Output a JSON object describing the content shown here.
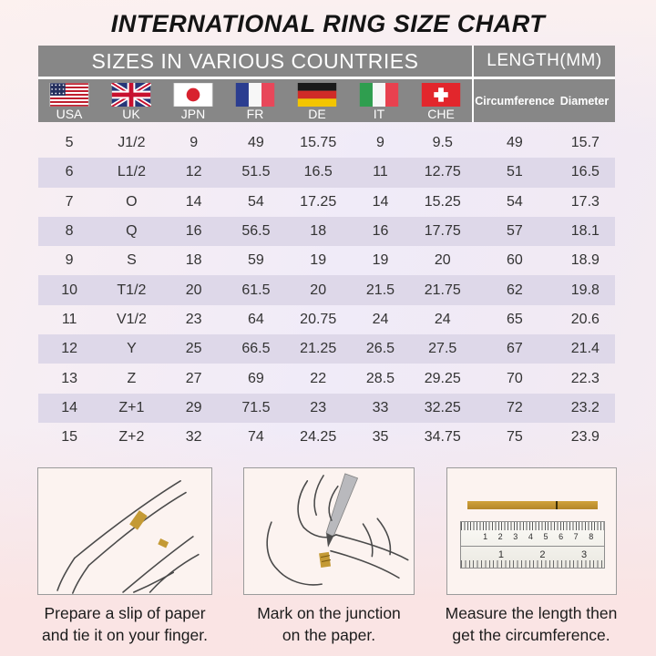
{
  "title": "INTERNATIONAL RING SIZE CHART",
  "header": {
    "countries_group": "SIZES IN VARIOUS COUNTRIES",
    "length_group": "LENGTH(MM)",
    "length_columns": [
      "Circumference",
      "Diameter"
    ]
  },
  "countries": [
    {
      "code": "USA",
      "flag": "usa-flag"
    },
    {
      "code": "UK",
      "flag": "uk-flag"
    },
    {
      "code": "JPN",
      "flag": "japan-flag"
    },
    {
      "code": "FR",
      "flag": "france-flag"
    },
    {
      "code": "DE",
      "flag": "germany-flag"
    },
    {
      "code": "IT",
      "flag": "italy-flag"
    },
    {
      "code": "CHE",
      "flag": "switzerland-flag"
    }
  ],
  "chart_data": {
    "type": "table",
    "title": "INTERNATIONAL RING SIZE CHART",
    "columns": [
      "USA",
      "UK",
      "JPN",
      "FR",
      "DE",
      "IT",
      "CHE",
      "Circumference",
      "Diameter"
    ],
    "rows": [
      [
        "5",
        "J1/2",
        "9",
        "49",
        "15.75",
        "9",
        "9.5",
        "49",
        "15.7"
      ],
      [
        "6",
        "L1/2",
        "12",
        "51.5",
        "16.5",
        "11",
        "12.75",
        "51",
        "16.5"
      ],
      [
        "7",
        "O",
        "14",
        "54",
        "17.25",
        "14",
        "15.25",
        "54",
        "17.3"
      ],
      [
        "8",
        "Q",
        "16",
        "56.5",
        "18",
        "16",
        "17.75",
        "57",
        "18.1"
      ],
      [
        "9",
        "S",
        "18",
        "59",
        "19",
        "19",
        "20",
        "60",
        "18.9"
      ],
      [
        "10",
        "T1/2",
        "20",
        "61.5",
        "20",
        "21.5",
        "21.75",
        "62",
        "19.8"
      ],
      [
        "11",
        "V1/2",
        "23",
        "64",
        "20.75",
        "24",
        "24",
        "65",
        "20.6"
      ],
      [
        "12",
        "Y",
        "25",
        "66.5",
        "21.25",
        "26.5",
        "27.5",
        "67",
        "21.4"
      ],
      [
        "13",
        "Z",
        "27",
        "69",
        "22",
        "28.5",
        "29.25",
        "70",
        "22.3"
      ],
      [
        "14",
        "Z+1",
        "29",
        "71.5",
        "23",
        "33",
        "32.25",
        "72",
        "23.2"
      ],
      [
        "15",
        "Z+2",
        "32",
        "74",
        "24.25",
        "35",
        "34.75",
        "75",
        "23.9"
      ]
    ]
  },
  "instructions": [
    {
      "illustration": "hand-with-paper-slip",
      "lines": [
        "Prepare a slip of paper",
        "and tie it on your finger."
      ]
    },
    {
      "illustration": "marking-pen-on-finger",
      "lines": [
        "Mark on the junction",
        "on the paper."
      ]
    },
    {
      "illustration": "ruler-measuring-strip",
      "lines": [
        "Measure the length then",
        "get the circumference."
      ]
    }
  ],
  "ruler": {
    "top_scale": [
      "1",
      "2",
      "3",
      "4",
      "5",
      "6",
      "7",
      "8"
    ],
    "bottom_scale": [
      "1",
      "2",
      "3"
    ]
  },
  "colors": {
    "header_bg": "#878787",
    "row_shade": "#ded8e9",
    "paper_gold": "#c49a35",
    "line_art": "#4a4a4a"
  }
}
